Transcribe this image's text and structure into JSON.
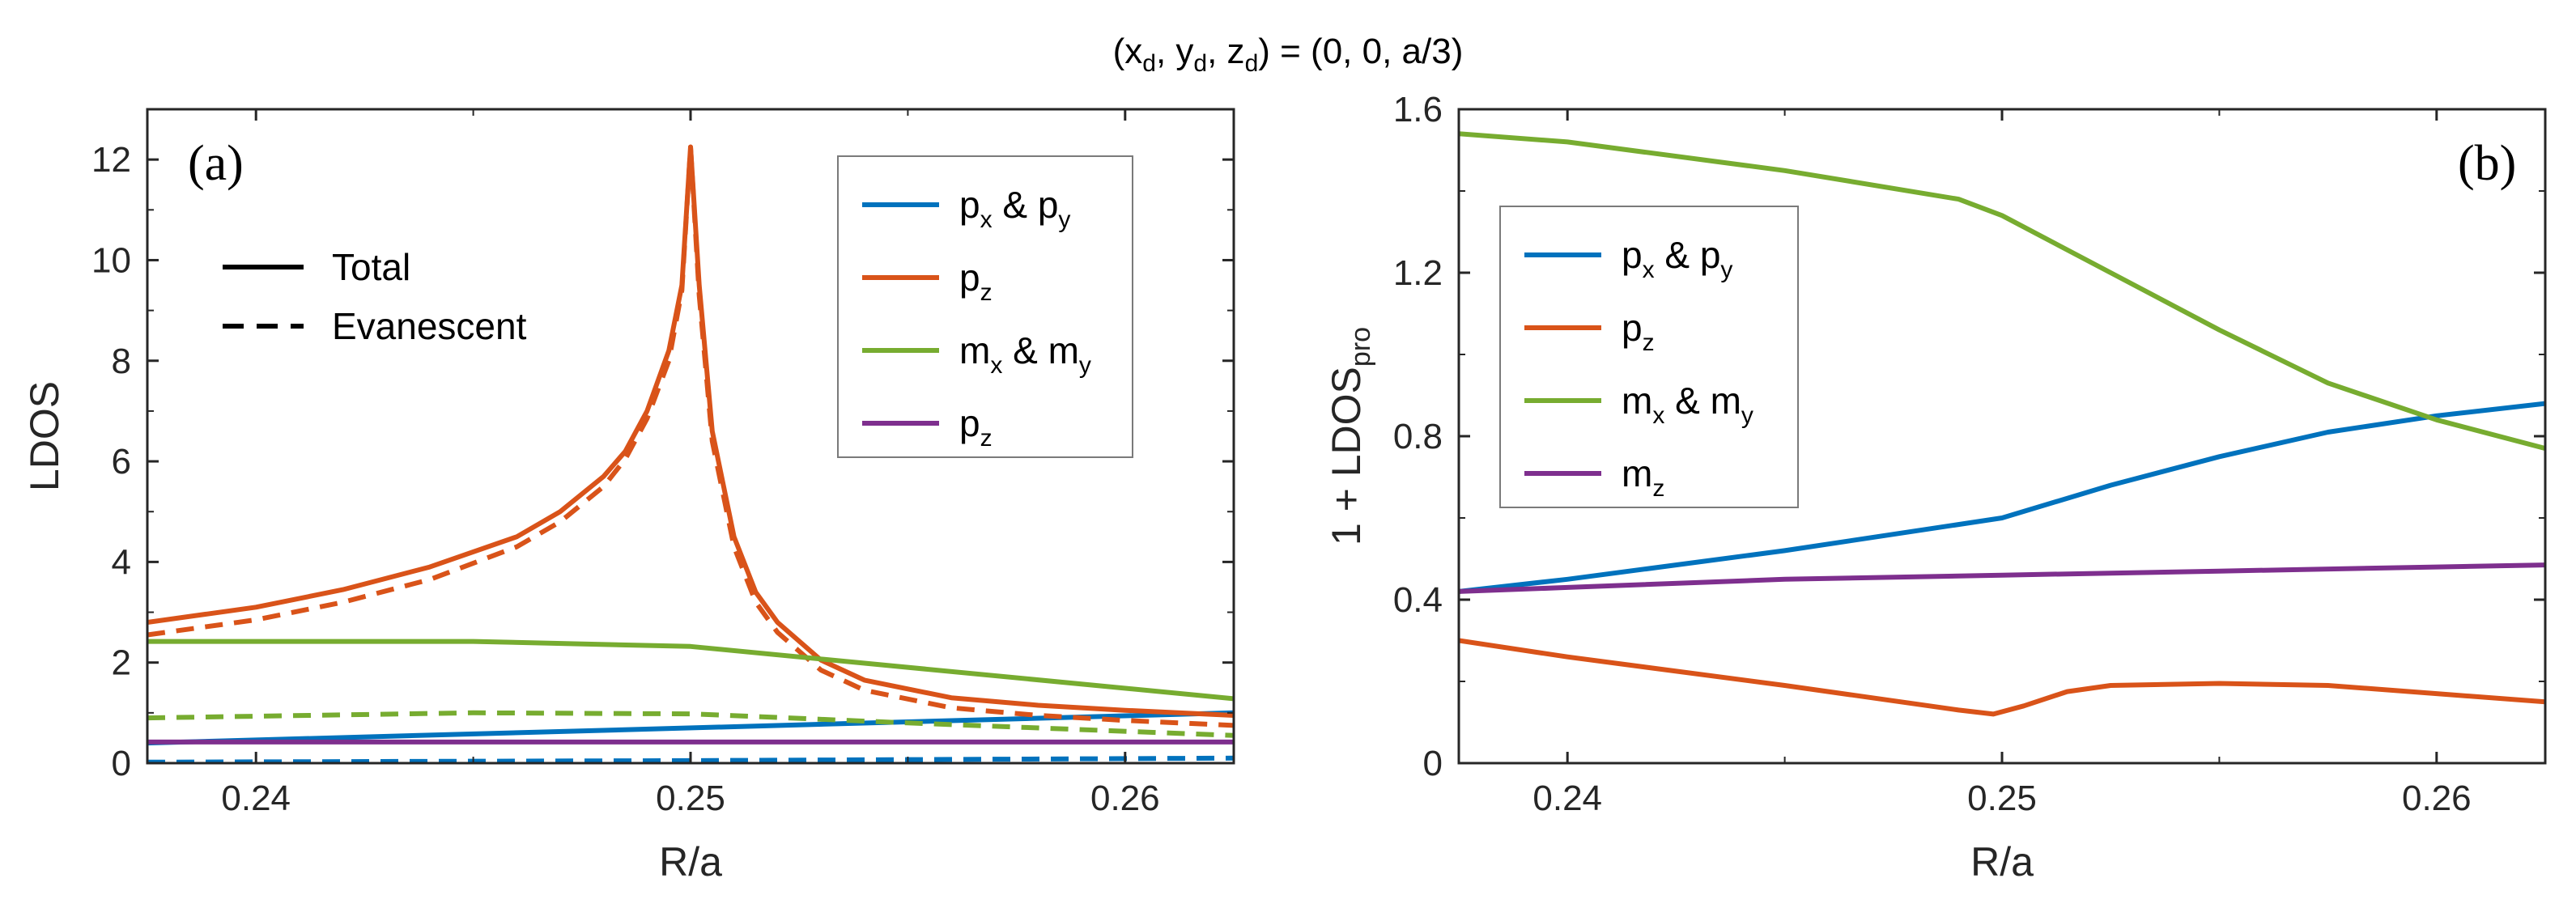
{
  "title": {
    "main": "(x",
    "d": "d",
    "rest1": ", y",
    "rest2": ", z",
    "rest3": ") = (0, 0, a/3)"
  },
  "colors": {
    "blue": "#0072BD",
    "orange": "#D95319",
    "green": "#77AC30",
    "purple": "#7E2F8E",
    "axis": "#262626"
  },
  "chart_data": [
    {
      "type": "line",
      "panel_label": "(a)",
      "xlabel": "R/a",
      "ylabel": "LDOS",
      "xlim": [
        0.2375,
        0.2625
      ],
      "ylim": [
        0,
        13
      ],
      "xticks": [
        0.24,
        0.25,
        0.26
      ],
      "xtick_labels": [
        "0.24",
        "0.25",
        "0.26"
      ],
      "yticks": [
        0,
        2,
        4,
        6,
        8,
        10,
        12
      ],
      "ytick_labels": [
        "0",
        "2",
        "4",
        "6",
        "8",
        "10",
        "12"
      ],
      "legend_position": "top-right",
      "legend": [
        {
          "label": "p",
          "sub1": "x",
          "mid": " & p",
          "sub2": "y",
          "color": "#0072BD"
        },
        {
          "label": "p",
          "sub1": "z",
          "mid": "",
          "sub2": "",
          "color": "#D95319"
        },
        {
          "label": "m",
          "sub1": "x",
          "mid": " & m",
          "sub2": "y",
          "color": "#77AC30"
        },
        {
          "label": "p",
          "sub1": "z",
          "mid": "",
          "sub2": "",
          "color": "#7E2F8E"
        }
      ],
      "style_legend": [
        {
          "label": "Total",
          "dash": "solid"
        },
        {
          "label": "Evanescent",
          "dash": "dashed"
        }
      ],
      "series": [
        {
          "name": "px & py total",
          "color": "#0072BD",
          "dash": "solid",
          "x": [
            0.2375,
            0.2625
          ],
          "y": [
            0.4,
            1.0
          ]
        },
        {
          "name": "px & py evanescent",
          "color": "#0072BD",
          "dash": "dashed",
          "x": [
            0.2375,
            0.25,
            0.2625
          ],
          "y": [
            0.02,
            0.05,
            0.1
          ]
        },
        {
          "name": "pz total",
          "color": "#D95319",
          "dash": "solid",
          "x": [
            0.2375,
            0.24,
            0.242,
            0.244,
            0.246,
            0.247,
            0.248,
            0.2485,
            0.249,
            0.2495,
            0.2498,
            0.25,
            0.2502,
            0.2505,
            0.251,
            0.2515,
            0.252,
            0.253,
            0.254,
            0.256,
            0.258,
            0.26,
            0.2625
          ],
          "y": [
            2.8,
            3.1,
            3.45,
            3.9,
            4.5,
            5.0,
            5.7,
            6.2,
            7.0,
            8.2,
            9.5,
            12.25,
            9.5,
            6.6,
            4.5,
            3.4,
            2.8,
            2.05,
            1.65,
            1.3,
            1.15,
            1.05,
            0.95
          ]
        },
        {
          "name": "pz evanescent",
          "color": "#D95319",
          "dash": "dashed",
          "x": [
            0.2375,
            0.24,
            0.242,
            0.244,
            0.246,
            0.247,
            0.248,
            0.2485,
            0.249,
            0.2495,
            0.2498,
            0.25,
            0.2502,
            0.2505,
            0.251,
            0.2515,
            0.252,
            0.253,
            0.254,
            0.256,
            0.258,
            0.26,
            0.2625
          ],
          "y": [
            2.55,
            2.85,
            3.2,
            3.65,
            4.3,
            4.8,
            5.5,
            6.05,
            6.85,
            8.0,
            9.4,
            12.25,
            9.3,
            6.4,
            4.3,
            3.2,
            2.6,
            1.85,
            1.45,
            1.1,
            0.95,
            0.85,
            0.75
          ]
        },
        {
          "name": "mx & my total",
          "color": "#77AC30",
          "dash": "solid",
          "x": [
            0.2375,
            0.245,
            0.25,
            0.2625
          ],
          "y": [
            2.42,
            2.42,
            2.32,
            1.28
          ]
        },
        {
          "name": "mx & my evanescent",
          "color": "#77AC30",
          "dash": "dashed",
          "x": [
            0.2375,
            0.245,
            0.25,
            0.255,
            0.2625
          ],
          "y": [
            0.9,
            1.0,
            0.98,
            0.8,
            0.55
          ]
        },
        {
          "name": "pz (purple) total",
          "color": "#7E2F8E",
          "dash": "solid",
          "x": [
            0.2375,
            0.2625
          ],
          "y": [
            0.42,
            0.42
          ]
        }
      ]
    },
    {
      "type": "line",
      "panel_label": "(b)",
      "xlabel": "R/a",
      "ylabel": "1 + LDOS",
      "ylabel_sub": "pro",
      "xlim": [
        0.2375,
        0.2625
      ],
      "ylim": [
        0,
        1.6
      ],
      "xticks": [
        0.24,
        0.25,
        0.26
      ],
      "xtick_labels": [
        "0.24",
        "0.25",
        "0.26"
      ],
      "yticks": [
        0,
        0.4,
        0.8,
        1.2,
        1.6
      ],
      "ytick_labels": [
        "0",
        "0.4",
        "0.8",
        "1.2",
        "1.6"
      ],
      "legend_position": "top-left",
      "legend": [
        {
          "label": "p",
          "sub1": "x",
          "mid": " & p",
          "sub2": "y",
          "color": "#0072BD"
        },
        {
          "label": "p",
          "sub1": "z",
          "mid": "",
          "sub2": "",
          "color": "#D95319"
        },
        {
          "label": "m",
          "sub1": "x",
          "mid": " & m",
          "sub2": "y",
          "color": "#77AC30"
        },
        {
          "label": "m",
          "sub1": "z",
          "mid": "",
          "sub2": "",
          "color": "#7E2F8E"
        }
      ],
      "series": [
        {
          "name": "px & py",
          "color": "#0072BD",
          "dash": "solid",
          "x": [
            0.2375,
            0.24,
            0.245,
            0.25,
            0.2525,
            0.255,
            0.2575,
            0.26,
            0.2625
          ],
          "y": [
            0.42,
            0.45,
            0.52,
            0.6,
            0.68,
            0.75,
            0.81,
            0.85,
            0.88
          ]
        },
        {
          "name": "pz",
          "color": "#D95319",
          "dash": "solid",
          "x": [
            0.2375,
            0.24,
            0.245,
            0.249,
            0.2498,
            0.2505,
            0.2515,
            0.2525,
            0.255,
            0.2575,
            0.26,
            0.2625
          ],
          "y": [
            0.3,
            0.26,
            0.19,
            0.13,
            0.12,
            0.14,
            0.175,
            0.19,
            0.195,
            0.19,
            0.17,
            0.15
          ]
        },
        {
          "name": "mx & my",
          "color": "#77AC30",
          "dash": "solid",
          "x": [
            0.2375,
            0.24,
            0.245,
            0.249,
            0.25,
            0.2525,
            0.255,
            0.2575,
            0.26,
            0.2625
          ],
          "y": [
            1.54,
            1.52,
            1.45,
            1.38,
            1.34,
            1.2,
            1.06,
            0.93,
            0.84,
            0.77
          ]
        },
        {
          "name": "mz",
          "color": "#7E2F8E",
          "dash": "solid",
          "x": [
            0.2375,
            0.24,
            0.245,
            0.25,
            0.255,
            0.26,
            0.2625
          ],
          "y": [
            0.42,
            0.43,
            0.45,
            0.46,
            0.47,
            0.48,
            0.485
          ]
        }
      ]
    }
  ]
}
